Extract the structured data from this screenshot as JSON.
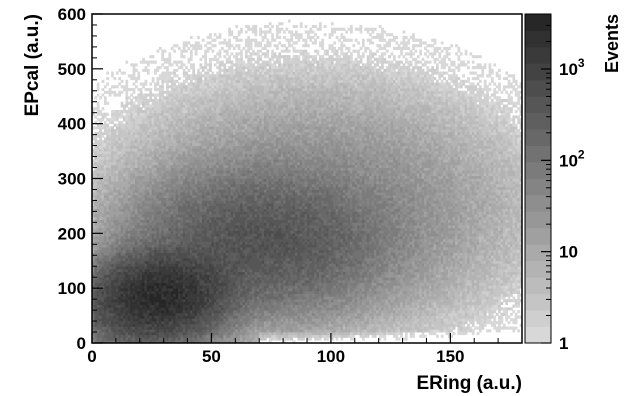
{
  "chart_data": {
    "type": "heatmap",
    "title": "",
    "xlabel": "ERing (a.u.)",
    "ylabel": "EPcal (a.u.)",
    "xlim": [
      0,
      180
    ],
    "ylim": [
      0,
      600
    ],
    "x_ticks": [
      {
        "value": 0,
        "label": "0"
      },
      {
        "value": 50,
        "label": "50"
      },
      {
        "value": 100,
        "label": "100"
      },
      {
        "value": 150,
        "label": "150"
      }
    ],
    "y_ticks": [
      {
        "value": 0,
        "label": "0"
      },
      {
        "value": 100,
        "label": "100"
      },
      {
        "value": 200,
        "label": "200"
      },
      {
        "value": 300,
        "label": "300"
      },
      {
        "value": 400,
        "label": "400"
      },
      {
        "value": 500,
        "label": "500"
      },
      {
        "value": 600,
        "label": "600"
      }
    ],
    "colorbar": {
      "title": "Events",
      "scale": "log",
      "range": [
        1,
        4000
      ],
      "ticks": [
        {
          "value": 1,
          "base": "1",
          "exp": ""
        },
        {
          "value": 10,
          "base": "10",
          "exp": ""
        },
        {
          "value": 100,
          "base": "10",
          "exp": "2"
        },
        {
          "value": 1000,
          "base": "10",
          "exp": "3"
        }
      ],
      "colors": [
        "#d8d8d8",
        "#1e1e1e"
      ]
    },
    "grid": false,
    "approximate_density": {
      "description_free": true,
      "peak": {
        "x": 30,
        "y": 90,
        "events": 3000
      },
      "ridge": [
        {
          "x": 10,
          "y": 30
        },
        {
          "x": 25,
          "y": 80
        },
        {
          "x": 45,
          "y": 140
        },
        {
          "x": 65,
          "y": 180
        },
        {
          "x": 85,
          "y": 200
        },
        {
          "x": 110,
          "y": 210
        },
        {
          "x": 140,
          "y": 200
        },
        {
          "x": 165,
          "y": 190
        }
      ]
    }
  }
}
